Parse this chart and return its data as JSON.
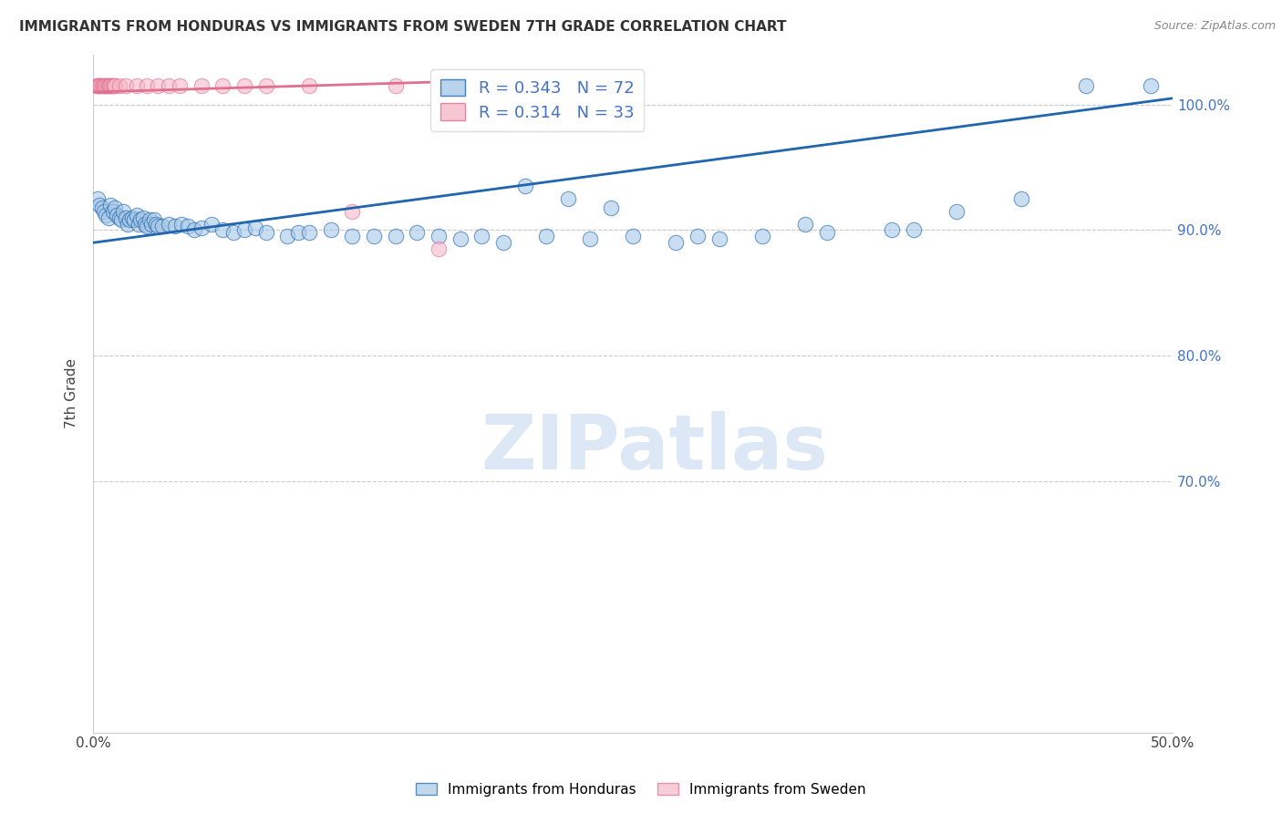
{
  "title": "IMMIGRANTS FROM HONDURAS VS IMMIGRANTS FROM SWEDEN 7TH GRADE CORRELATION CHART",
  "source": "Source: ZipAtlas.com",
  "ylabel": "7th Grade",
  "r_honduras": 0.343,
  "n_honduras": 72,
  "r_sweden": 0.314,
  "n_sweden": 33,
  "color_honduras": "#a8c8e8",
  "color_sweden": "#f4b8c8",
  "trendline_honduras": "#2166ac",
  "trendline_sweden": "#e07090",
  "xlim": [
    0.0,
    50.0
  ],
  "ylim": [
    86.0,
    103.5
  ],
  "yticks_right": [
    90.0,
    100.0
  ],
  "yticks_grid": [
    90.0,
    80.0,
    70.0
  ],
  "xticks": [
    0.0,
    10.0,
    20.0,
    30.0,
    40.0,
    50.0
  ],
  "background_color": "#ffffff",
  "honduras_x": [
    0.2,
    0.3,
    0.4,
    0.5,
    0.6,
    0.7,
    0.8,
    0.9,
    1.0,
    1.1,
    1.2,
    1.3,
    1.4,
    1.5,
    1.6,
    1.7,
    1.8,
    1.9,
    2.0,
    2.1,
    2.2,
    2.3,
    2.4,
    2.5,
    2.6,
    2.7,
    2.8,
    2.9,
    3.0,
    3.2,
    3.5,
    3.8,
    4.1,
    4.4,
    4.7,
    5.0,
    5.5,
    6.0,
    6.5,
    7.0,
    7.5,
    8.0,
    9.0,
    9.5,
    10.0,
    11.0,
    12.0,
    13.0,
    14.0,
    15.0,
    16.0,
    17.0,
    18.0,
    19.0,
    21.0,
    23.0,
    25.0,
    27.0,
    29.0,
    31.0,
    34.0,
    37.0,
    40.0,
    43.0,
    46.0,
    49.0,
    20.0,
    22.0,
    24.0,
    28.0,
    33.0,
    38.0
  ],
  "honduras_y": [
    92.5,
    92.0,
    91.8,
    91.5,
    91.2,
    91.0,
    92.0,
    91.5,
    91.8,
    91.2,
    91.0,
    90.8,
    91.5,
    91.0,
    90.5,
    90.8,
    91.0,
    90.8,
    91.2,
    90.5,
    90.8,
    91.0,
    90.5,
    90.3,
    90.8,
    90.5,
    90.8,
    90.5,
    90.3,
    90.3,
    90.5,
    90.3,
    90.5,
    90.3,
    90.0,
    90.2,
    90.5,
    90.0,
    89.8,
    90.0,
    90.2,
    89.8,
    89.5,
    89.8,
    89.8,
    90.0,
    89.5,
    89.5,
    89.5,
    89.8,
    89.5,
    89.3,
    89.5,
    89.0,
    89.5,
    89.3,
    89.5,
    89.0,
    89.3,
    89.5,
    89.8,
    90.0,
    91.5,
    92.5,
    101.5,
    101.5,
    93.5,
    92.5,
    91.8,
    89.5,
    90.5,
    90.0
  ],
  "sweden_x": [
    0.15,
    0.2,
    0.25,
    0.3,
    0.35,
    0.4,
    0.45,
    0.5,
    0.55,
    0.6,
    0.65,
    0.7,
    0.75,
    0.8,
    0.85,
    0.9,
    0.95,
    1.0,
    1.2,
    1.5,
    2.0,
    2.5,
    3.0,
    3.5,
    4.0,
    5.0,
    6.0,
    7.0,
    8.0,
    10.0,
    12.0,
    14.0,
    16.0
  ],
  "sweden_y": [
    101.5,
    101.5,
    101.5,
    101.5,
    101.5,
    101.5,
    101.5,
    101.5,
    101.5,
    101.5,
    101.5,
    101.5,
    101.5,
    101.5,
    101.5,
    101.5,
    101.5,
    101.5,
    101.5,
    101.5,
    101.5,
    101.5,
    101.5,
    101.5,
    101.5,
    101.5,
    101.5,
    101.5,
    101.5,
    101.5,
    91.5,
    101.5,
    88.5
  ],
  "watermark_text": "ZIPatlas",
  "watermark_color": "#dce8f5",
  "watermark_fontsize": 60
}
